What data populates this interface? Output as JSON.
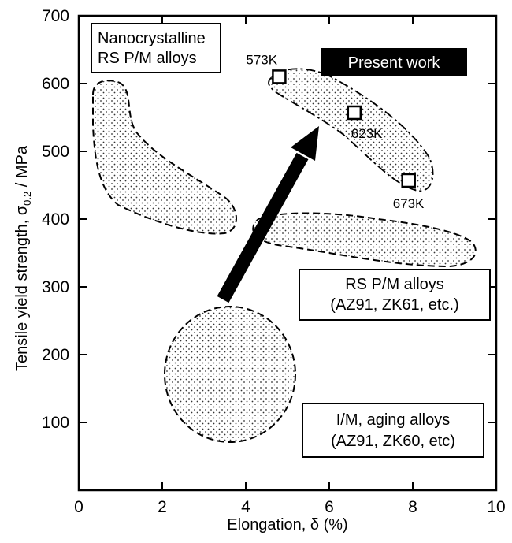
{
  "chart_data": {
    "type": "scatter",
    "xlabel": "Elongation, δ (%)",
    "ylabel_main": "Tensile yield strength, σ",
    "ylabel_sub": "0.2",
    "ylabel_unit": " / MPa",
    "xlim": [
      0,
      10
    ],
    "ylim": [
      0,
      700
    ],
    "xticks": [
      "0",
      "2",
      "4",
      "6",
      "8",
      "10"
    ],
    "yticks": [
      "100",
      "200",
      "300",
      "400",
      "500",
      "600",
      "700"
    ],
    "grid": false,
    "series": [
      {
        "name": "Present work",
        "points": [
          {
            "label": "573K",
            "x": 4.8,
            "y": 610
          },
          {
            "label": "623K",
            "x": 6.6,
            "y": 557
          },
          {
            "label": "673K",
            "x": 7.9,
            "y": 457
          }
        ]
      }
    ],
    "regions": [
      {
        "line1": "Nanocrystalline",
        "line2": "RS P/M alloys"
      },
      {
        "line1": "RS P/M alloys",
        "line2": "(AZ91, ZK61, etc.)"
      },
      {
        "line1": "I/M, aging alloys",
        "line2": "(AZ91, ZK60, etc)"
      }
    ],
    "annotations": [
      "Present work"
    ]
  }
}
